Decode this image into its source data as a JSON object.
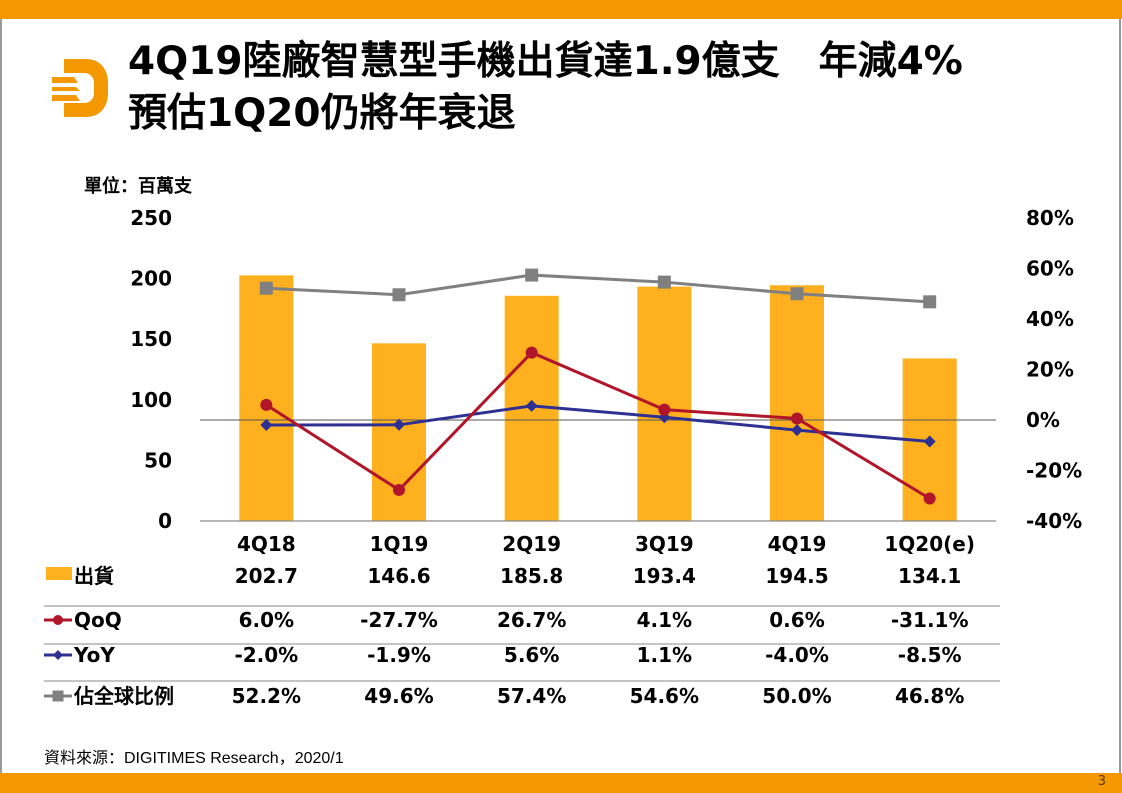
{
  "slide": {
    "title_line1": "4Q19陸廠智慧型手機出貨達1.9億支　年減4%",
    "title_line2": "預估1Q20仍將年衰退",
    "unit_label": "單位：百萬支",
    "source": "資料來源：DIGITIMES Research，2020/1",
    "page_number": "3",
    "logo": "digitimes-d-logo-icon",
    "colors": {
      "accent": "#f39800",
      "bar": "#ffb01f",
      "qoq": "#b0152a",
      "yoy": "#2e3192",
      "share": "#808080"
    }
  },
  "chart_data": {
    "type": "bar",
    "title": "4Q19陸廠智慧型手機出貨達1.9億支　年減4%　預估1Q20仍將年衰退",
    "xlabel": "",
    "ylabel": "單位：百萬支",
    "categories": [
      "4Q18",
      "1Q19",
      "2Q19",
      "3Q19",
      "4Q19",
      "1Q20(e)"
    ],
    "ylim": [
      0,
      250
    ],
    "y_ticks": [
      "0",
      "50",
      "100",
      "150",
      "200",
      "250"
    ],
    "y2lim": [
      -40,
      80
    ],
    "y2_ticks": [
      "-40%",
      "-20%",
      "0%",
      "20%",
      "40%",
      "60%",
      "80%"
    ],
    "grid": false,
    "legend": "bottom (data table)",
    "series": [
      {
        "name": "出貨",
        "type": "bar",
        "axis": "left",
        "values": [
          202.7,
          146.6,
          185.8,
          193.4,
          194.5,
          134.1
        ],
        "labels": [
          "202.7",
          "146.6",
          "185.8",
          "193.4",
          "194.5",
          "134.1"
        ]
      },
      {
        "name": "QoQ",
        "type": "line",
        "marker": "circle",
        "axis": "right",
        "values": [
          6.0,
          -27.7,
          26.7,
          4.1,
          0.6,
          -31.1
        ],
        "labels": [
          "6.0%",
          "-27.7%",
          "26.7%",
          "4.1%",
          "0.6%",
          "-31.1%"
        ]
      },
      {
        "name": "YoY",
        "type": "line",
        "marker": "diamond",
        "axis": "right",
        "values": [
          -2.0,
          -1.9,
          5.6,
          1.1,
          -4.0,
          -8.5
        ],
        "labels": [
          "-2.0%",
          "-1.9%",
          "5.6%",
          "1.1%",
          "-4.0%",
          "-8.5%"
        ]
      },
      {
        "name": "佔全球比例",
        "type": "line",
        "marker": "square",
        "axis": "right",
        "values": [
          52.2,
          49.6,
          57.4,
          54.6,
          50.0,
          46.8
        ],
        "labels": [
          "52.2%",
          "49.6%",
          "57.4%",
          "54.6%",
          "50.0%",
          "46.8%"
        ]
      }
    ]
  }
}
